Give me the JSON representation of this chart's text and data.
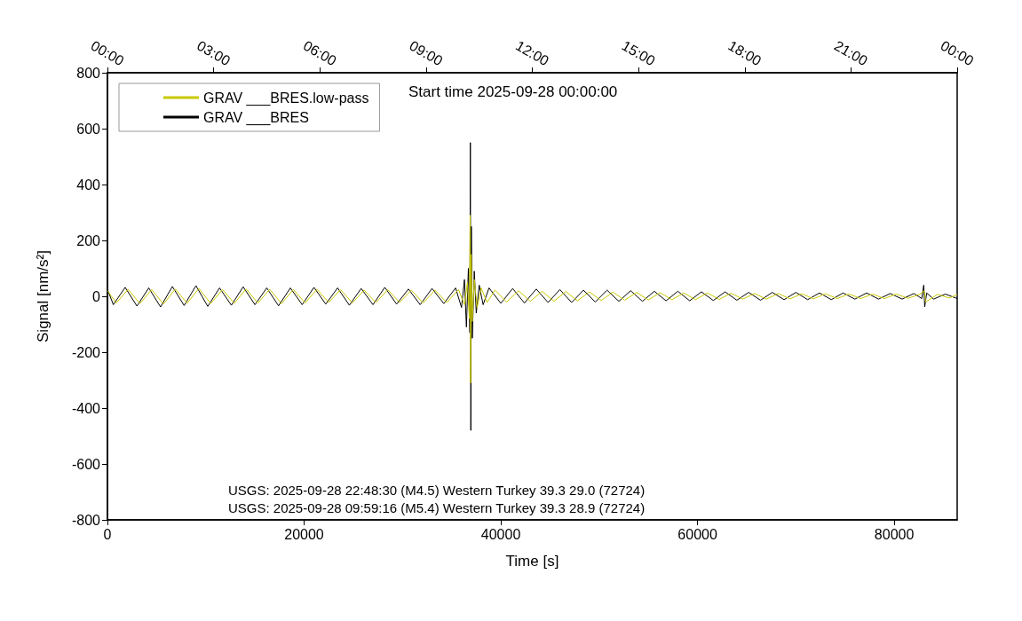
{
  "chart_data": {
    "type": "line",
    "xlabel": "Time [s]",
    "ylabel": "Signal [nm/s²]",
    "annotations": [
      "Start time 2025-09-28 00:00:00",
      "USGS: 2025-09-28 22:48:30 (M4.5) Western Turkey 39.3 29.0 (72724)",
      "USGS: 2025-09-28 09:59:16 (M5.4) Western Turkey 39.3 28.9 (72724)"
    ],
    "xlim": [
      0,
      86400
    ],
    "xticks": [
      0,
      20000,
      40000,
      60000,
      80000
    ],
    "x2lim": [
      0,
      24
    ],
    "x2ticks": [
      {
        "value": 0,
        "label": "00:00"
      },
      {
        "value": 3,
        "label": "03:00"
      },
      {
        "value": 6,
        "label": "06:00"
      },
      {
        "value": 9,
        "label": "09:00"
      },
      {
        "value": 12,
        "label": "12:00"
      },
      {
        "value": 15,
        "label": "15:00"
      },
      {
        "value": 18,
        "label": "18:00"
      },
      {
        "value": 21,
        "label": "21:00"
      },
      {
        "value": 24,
        "label": "00:00"
      }
    ],
    "ylim": [
      -800,
      800
    ],
    "yticks": [
      -800,
      -600,
      -400,
      -200,
      0,
      200,
      400,
      600,
      800
    ],
    "grid": false,
    "legend": "top left",
    "marker": "none",
    "line_style": "solid",
    "series": [
      {
        "name": "GRAV ___BRES.low-pass",
        "color": "#c8c800",
        "x": [
          0,
          900,
          2100,
          3300,
          4500,
          5700,
          6900,
          8100,
          9300,
          10500,
          11700,
          12900,
          14100,
          15300,
          16500,
          17700,
          18900,
          20100,
          21300,
          22500,
          23700,
          24900,
          26100,
          27300,
          28500,
          29700,
          30900,
          32100,
          33300,
          34500,
          35700,
          36300,
          36600,
          36800,
          36880,
          36920,
          36980,
          37100,
          37300,
          37600,
          38000,
          38600,
          39400,
          40600,
          41800,
          43000,
          44200,
          45400,
          46600,
          47800,
          49000,
          50200,
          51400,
          52600,
          53800,
          55000,
          56200,
          57400,
          58600,
          59800,
          61000,
          62200,
          63400,
          64600,
          65800,
          67000,
          68200,
          69400,
          70600,
          71800,
          73000,
          74200,
          75400,
          76600,
          77800,
          79000,
          80200,
          81400,
          82600,
          83050,
          83200,
          84400,
          85600,
          86400
        ],
        "values": [
          20,
          -24,
          25,
          -26,
          24,
          -28,
          26,
          -25,
          28,
          -26,
          24,
          -25,
          26,
          -24,
          25,
          -26,
          24,
          -24,
          25,
          -22,
          24,
          -24,
          22,
          -23,
          24,
          -22,
          22,
          -24,
          22,
          -22,
          24,
          -30,
          50,
          -80,
          290,
          -310,
          150,
          -90,
          60,
          -40,
          30,
          -22,
          22,
          -20,
          20,
          -18,
          18,
          -18,
          17,
          -16,
          16,
          -15,
          15,
          -14,
          14,
          -13,
          13,
          -12,
          12,
          -12,
          12,
          -11,
          11,
          -10,
          10,
          -10,
          10,
          -9,
          9,
          -9,
          9,
          -8,
          8,
          -8,
          8,
          -8,
          8,
          -7,
          7,
          20,
          -20,
          7,
          -6,
          6
        ]
      },
      {
        "name": "GRAV ___BRES",
        "color": "#000000",
        "x": [
          0,
          600,
          1800,
          3000,
          4200,
          5400,
          6600,
          7800,
          9000,
          10200,
          11400,
          12600,
          13800,
          15000,
          16200,
          17400,
          18600,
          19800,
          21000,
          22200,
          23400,
          24600,
          25800,
          27000,
          28200,
          29400,
          30600,
          31800,
          33000,
          34200,
          35400,
          36000,
          36300,
          36500,
          36700,
          36850,
          36900,
          36950,
          37000,
          37100,
          37300,
          37500,
          37800,
          38200,
          38800,
          40000,
          41200,
          42400,
          43600,
          44800,
          46000,
          47200,
          48400,
          49600,
          50800,
          52000,
          53200,
          54400,
          55600,
          56800,
          58000,
          59200,
          60400,
          61600,
          62800,
          64000,
          65200,
          66400,
          67600,
          68800,
          70000,
          71200,
          72400,
          73600,
          74800,
          76000,
          77200,
          78400,
          79600,
          80800,
          82000,
          82800,
          83000,
          83100,
          83300,
          84000,
          85200,
          86400
        ],
        "values": [
          25,
          -30,
          32,
          -35,
          30,
          -38,
          35,
          -33,
          38,
          -36,
          30,
          -32,
          34,
          -30,
          30,
          -34,
          30,
          -30,
          32,
          -28,
          30,
          -32,
          28,
          -30,
          32,
          -28,
          26,
          -30,
          28,
          -26,
          30,
          -40,
          60,
          -110,
          100,
          -130,
          550,
          -480,
          250,
          -150,
          90,
          -60,
          40,
          -30,
          30,
          -25,
          28,
          -24,
          26,
          -22,
          24,
          -22,
          22,
          -20,
          22,
          -18,
          20,
          -18,
          18,
          -16,
          18,
          -16,
          16,
          -15,
          16,
          -14,
          14,
          -14,
          14,
          -12,
          14,
          -12,
          12,
          -12,
          12,
          -10,
          12,
          -10,
          10,
          -10,
          10,
          -8,
          40,
          -38,
          12,
          -10,
          8,
          -8
        ]
      }
    ]
  }
}
